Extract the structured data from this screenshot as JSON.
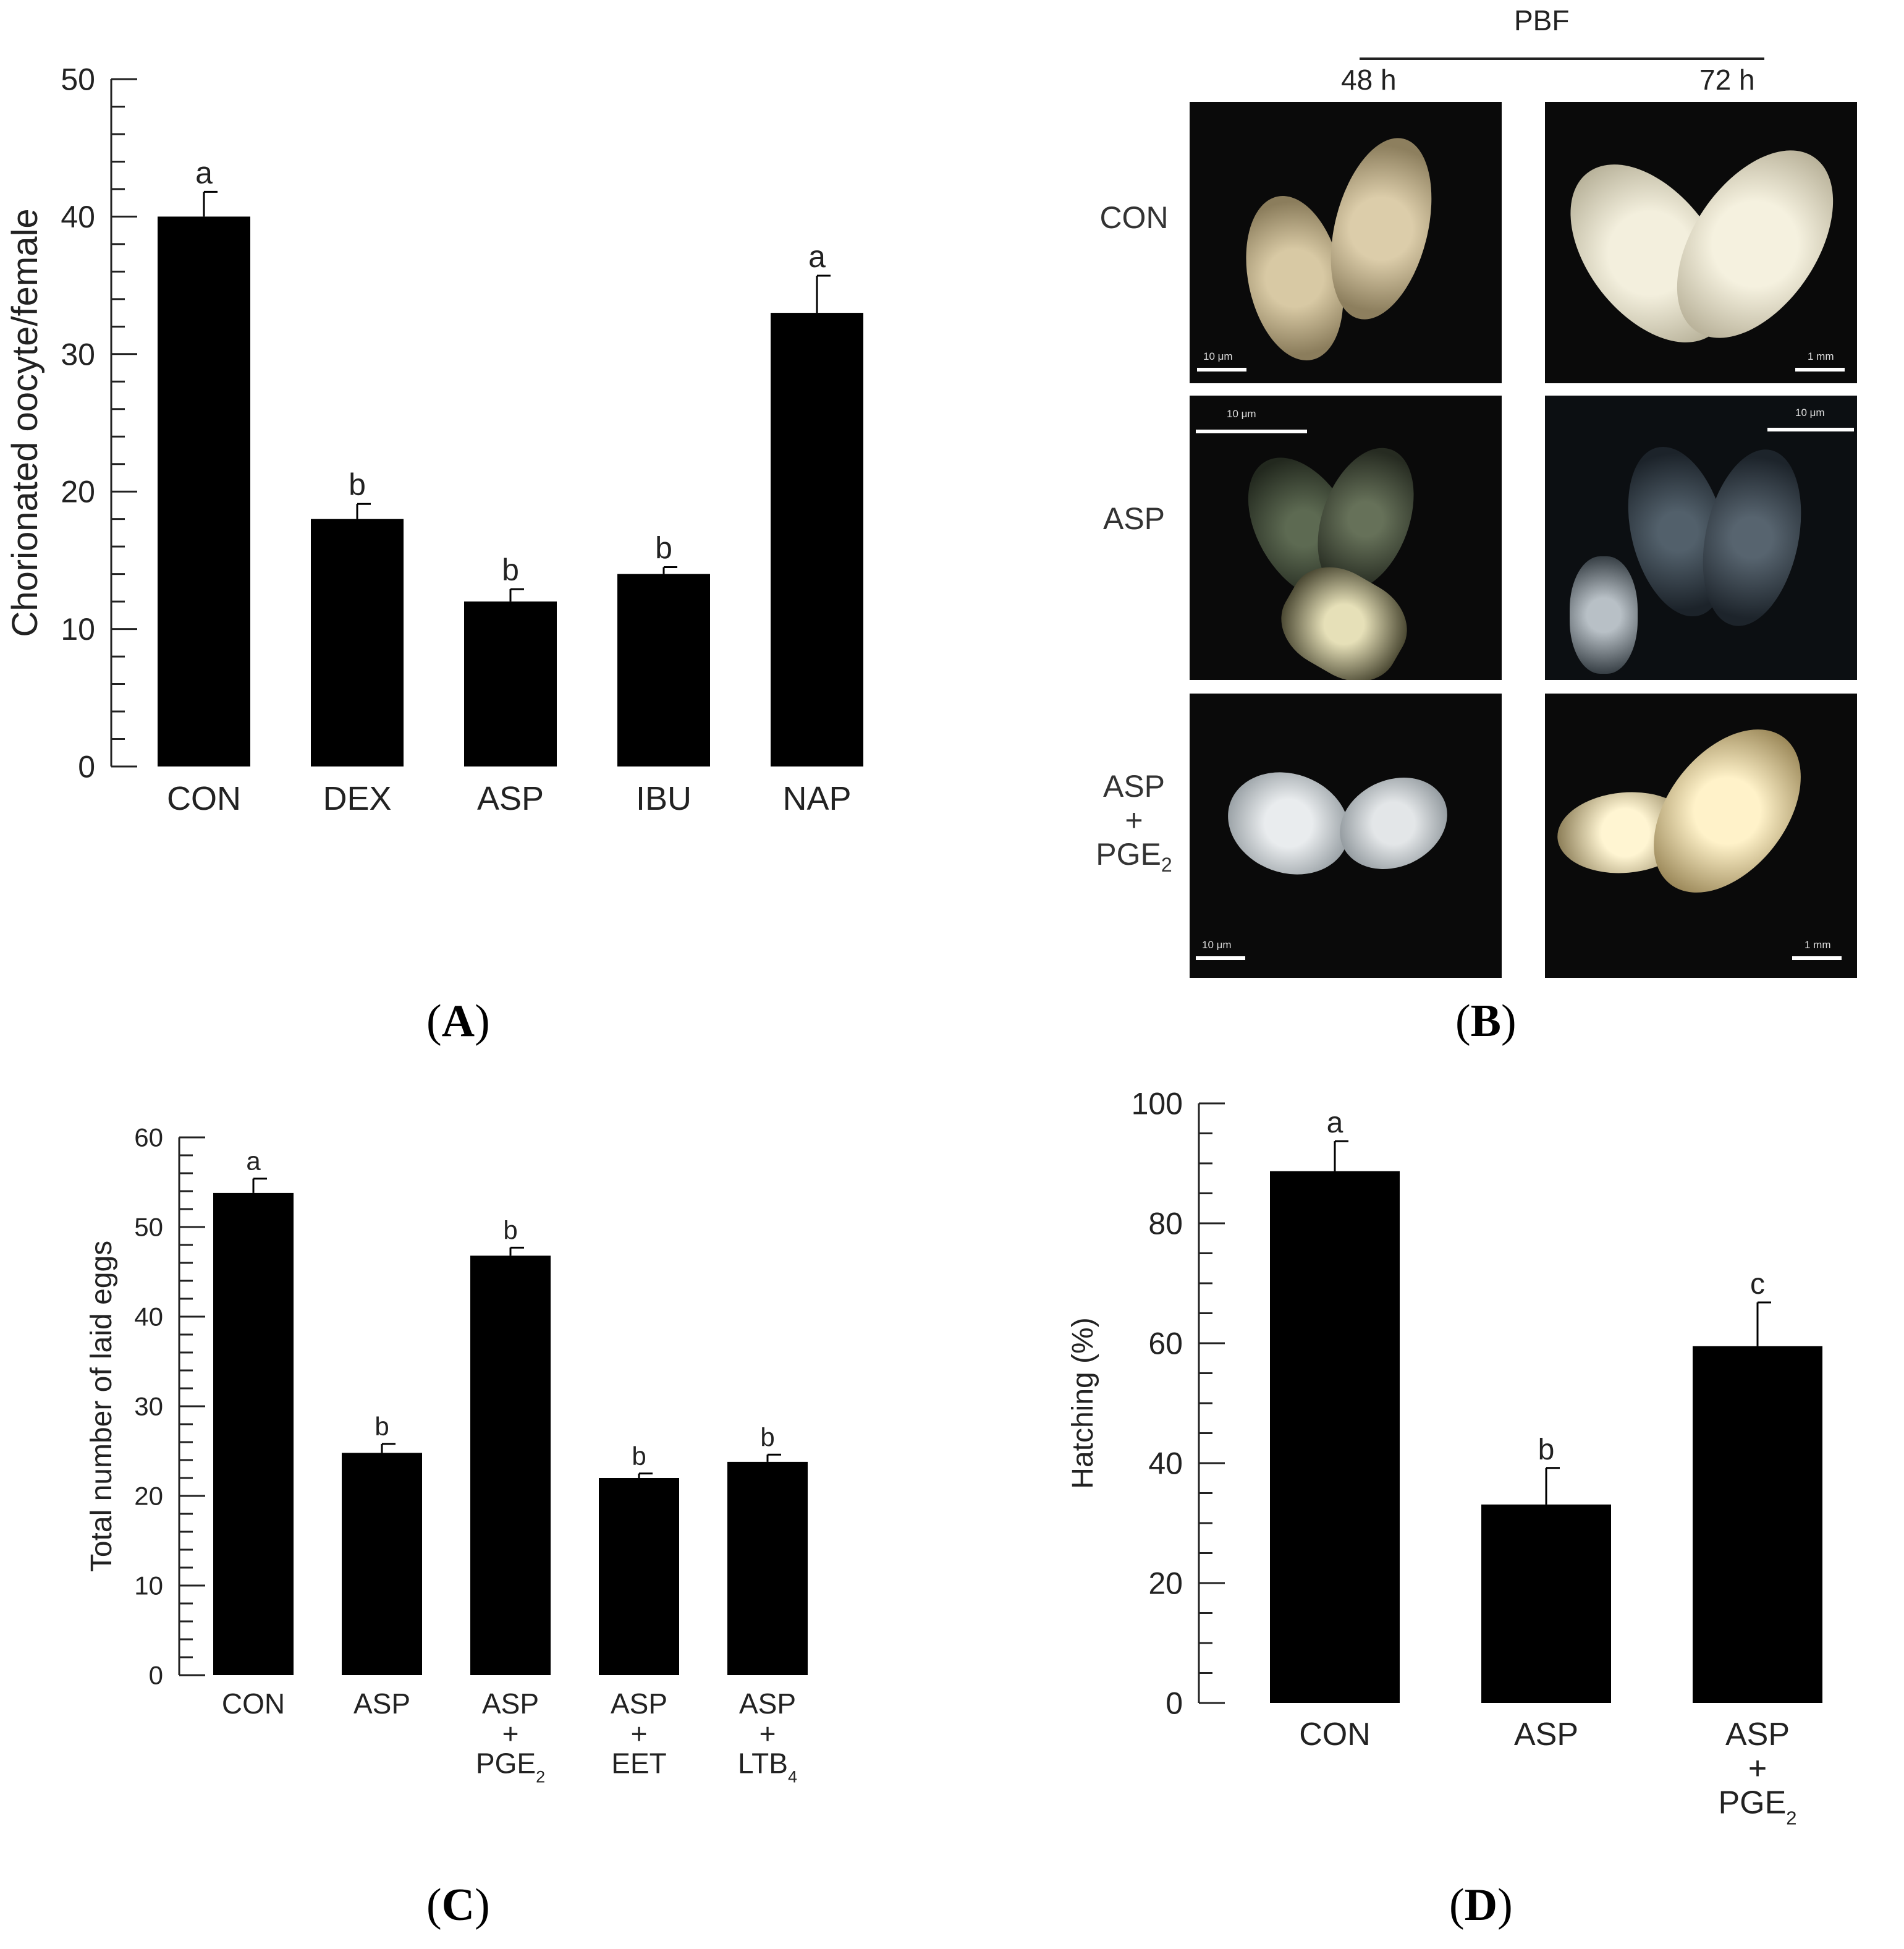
{
  "panels": {
    "A": {
      "label": "A"
    },
    "B": {
      "label": "B"
    },
    "C": {
      "label": "C"
    },
    "D": {
      "label": "D"
    }
  },
  "chart_data": [
    {
      "id": "A",
      "type": "bar",
      "ylabel": "Chorionated oocyte/female",
      "ylim": [
        0,
        50
      ],
      "yticks": [
        "0",
        "10",
        "20",
        "30",
        "40",
        "50"
      ],
      "categories": [
        "CON",
        "DEX",
        "ASP",
        "IBU",
        "NAP"
      ],
      "values": [
        40,
        18,
        12,
        14,
        33
      ],
      "errors": [
        1.8,
        1.1,
        0.9,
        0.5,
        2.7
      ],
      "letters": [
        "a",
        "b",
        "b",
        "b",
        "a"
      ],
      "bar_color": "#000000"
    },
    {
      "id": "C",
      "type": "bar",
      "ylabel": "Total number of laid eggs",
      "ylim": [
        0,
        60
      ],
      "yticks": [
        "0",
        "10",
        "20",
        "30",
        "40",
        "50",
        "60"
      ],
      "categories": [
        [
          "CON"
        ],
        [
          "ASP"
        ],
        [
          "ASP",
          "+",
          "PGE",
          "2"
        ],
        [
          "ASP",
          "+",
          "EET"
        ],
        [
          "ASP",
          "+",
          "LTB",
          "4"
        ]
      ],
      "values": [
        53.8,
        24.8,
        46.8,
        22,
        23.8
      ],
      "errors": [
        1.6,
        1.0,
        0.9,
        0.5,
        0.8
      ],
      "letters": [
        "a",
        "b",
        "b",
        "b",
        "b"
      ],
      "bar_color": "#000000"
    },
    {
      "id": "D",
      "type": "bar",
      "ylabel": "Hatching (%)",
      "ylim": [
        0,
        100
      ],
      "yticks": [
        "0",
        "20",
        "40",
        "60",
        "80",
        "100"
      ],
      "categories": [
        [
          "CON"
        ],
        [
          "ASP"
        ],
        [
          "ASP",
          "+",
          "PGE",
          "2"
        ]
      ],
      "values": [
        88.7,
        33.1,
        59.5
      ],
      "errors": [
        5.0,
        6.1,
        7.3
      ],
      "letters": [
        "a",
        "b",
        "c"
      ],
      "bar_color": "#000000"
    }
  ],
  "micrographs": {
    "header": "PBF",
    "columns": [
      "48 h",
      "72 h"
    ],
    "rows": [
      {
        "label": [
          "CON"
        ],
        "scales": [
          "10 μm",
          "1 mm"
        ]
      },
      {
        "label": [
          "ASP"
        ],
        "scales": [
          "10 μm",
          "10 μm"
        ]
      },
      {
        "label": [
          "ASP",
          "+",
          "PGE",
          "2"
        ],
        "scales": [
          "10 μm",
          "1 mm"
        ]
      }
    ]
  }
}
